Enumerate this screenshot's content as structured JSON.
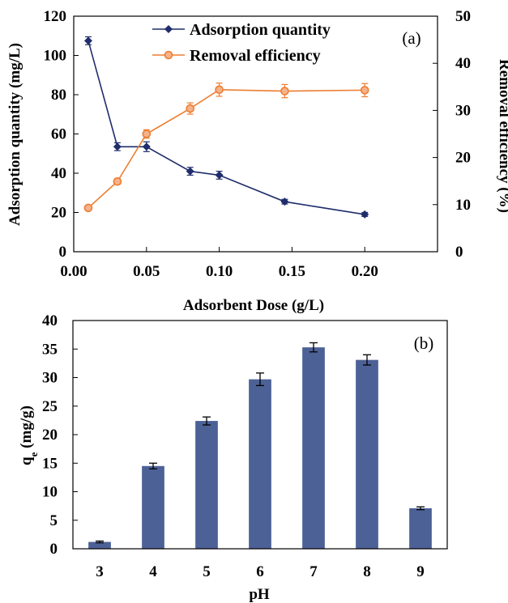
{
  "chart_data": [
    {
      "type": "line",
      "panel_label": "(a)",
      "xlabel": "Adsorbent Dose (g/L)",
      "ylabel": "Adsorption quantity (mg/L)",
      "y2label": "Removal efficiency (%)",
      "xlim": [
        0,
        0.25
      ],
      "ylim": [
        0,
        120
      ],
      "y2lim": [
        0,
        50
      ],
      "xticks": [
        "0.00",
        "0.05",
        "0.10",
        "0.15",
        "0.20"
      ],
      "yticks": [
        "0",
        "20",
        "40",
        "60",
        "80",
        "100",
        "120"
      ],
      "y2ticks": [
        "0",
        "10",
        "20",
        "30",
        "40",
        "50"
      ],
      "grid": false,
      "legend_placement": "top-center",
      "series": [
        {
          "name": "Adsorption quantity",
          "axis": "left",
          "color": "#1F2D6B",
          "marker": "diamond",
          "x": [
            0.01,
            0.03,
            0.05,
            0.08,
            0.1,
            0.145,
            0.2
          ],
          "y": [
            107.5,
            53.5,
            53.5,
            41.0,
            39.0,
            25.5,
            19.0
          ],
          "err": [
            2.0,
            2.0,
            2.5,
            2.0,
            2.0,
            1.2,
            1.0
          ]
        },
        {
          "name": "Removal efficiency",
          "axis": "right",
          "color": "#ED7D31",
          "marker": "circle",
          "x": [
            0.01,
            0.03,
            0.05,
            0.08,
            0.1,
            0.145,
            0.2
          ],
          "y": [
            9.3,
            14.9,
            25.0,
            30.4,
            34.4,
            34.1,
            34.3
          ],
          "err": [
            0.4,
            0.6,
            0.9,
            1.2,
            1.4,
            1.4,
            1.4
          ]
        }
      ]
    },
    {
      "type": "bar",
      "panel_label": "(b)",
      "xlabel": "pH",
      "ylabel_main": "q",
      "ylabel_sub": "e",
      "ylabel_tail": " (mg/g)",
      "ylim": [
        0,
        40
      ],
      "yticks": [
        "0",
        "5",
        "10",
        "15",
        "20",
        "25",
        "30",
        "35",
        "40"
      ],
      "grid": false,
      "color": "#4C6196",
      "categories": [
        "3",
        "4",
        "5",
        "6",
        "7",
        "8",
        "9"
      ],
      "values": [
        1.2,
        14.5,
        22.4,
        29.7,
        35.3,
        33.1,
        7.1
      ],
      "err": [
        0.15,
        0.5,
        0.7,
        1.1,
        0.8,
        0.9,
        0.25
      ]
    }
  ]
}
